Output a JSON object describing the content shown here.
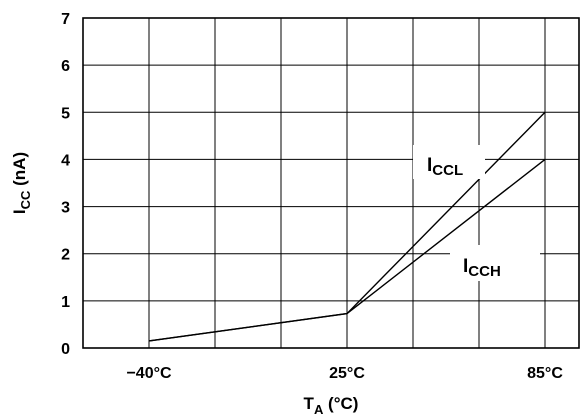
{
  "chart_data": {
    "type": "line",
    "x": [
      "-40°C",
      "25°C",
      "85°C"
    ],
    "xtick_labels": [
      "−40°C",
      "25°C",
      "85°C"
    ],
    "ylim": [
      0,
      7
    ],
    "yticks": [
      0,
      1,
      2,
      3,
      4,
      5,
      6,
      7
    ],
    "grid": true,
    "xlabel": {
      "main": "T",
      "sub": "A",
      "rest": " (°C)"
    },
    "ylabel": {
      "main": "I",
      "sub": "CC",
      "rest": " (nA)"
    },
    "series": [
      {
        "name": "ICCL",
        "label_main": "I",
        "label_sub": "CCL",
        "values": [
          0.15,
          0.73,
          5.0
        ]
      },
      {
        "name": "ICCH",
        "label_main": "I",
        "label_sub": "CCH",
        "values": [
          0.15,
          0.73,
          4.0
        ]
      }
    ]
  }
}
